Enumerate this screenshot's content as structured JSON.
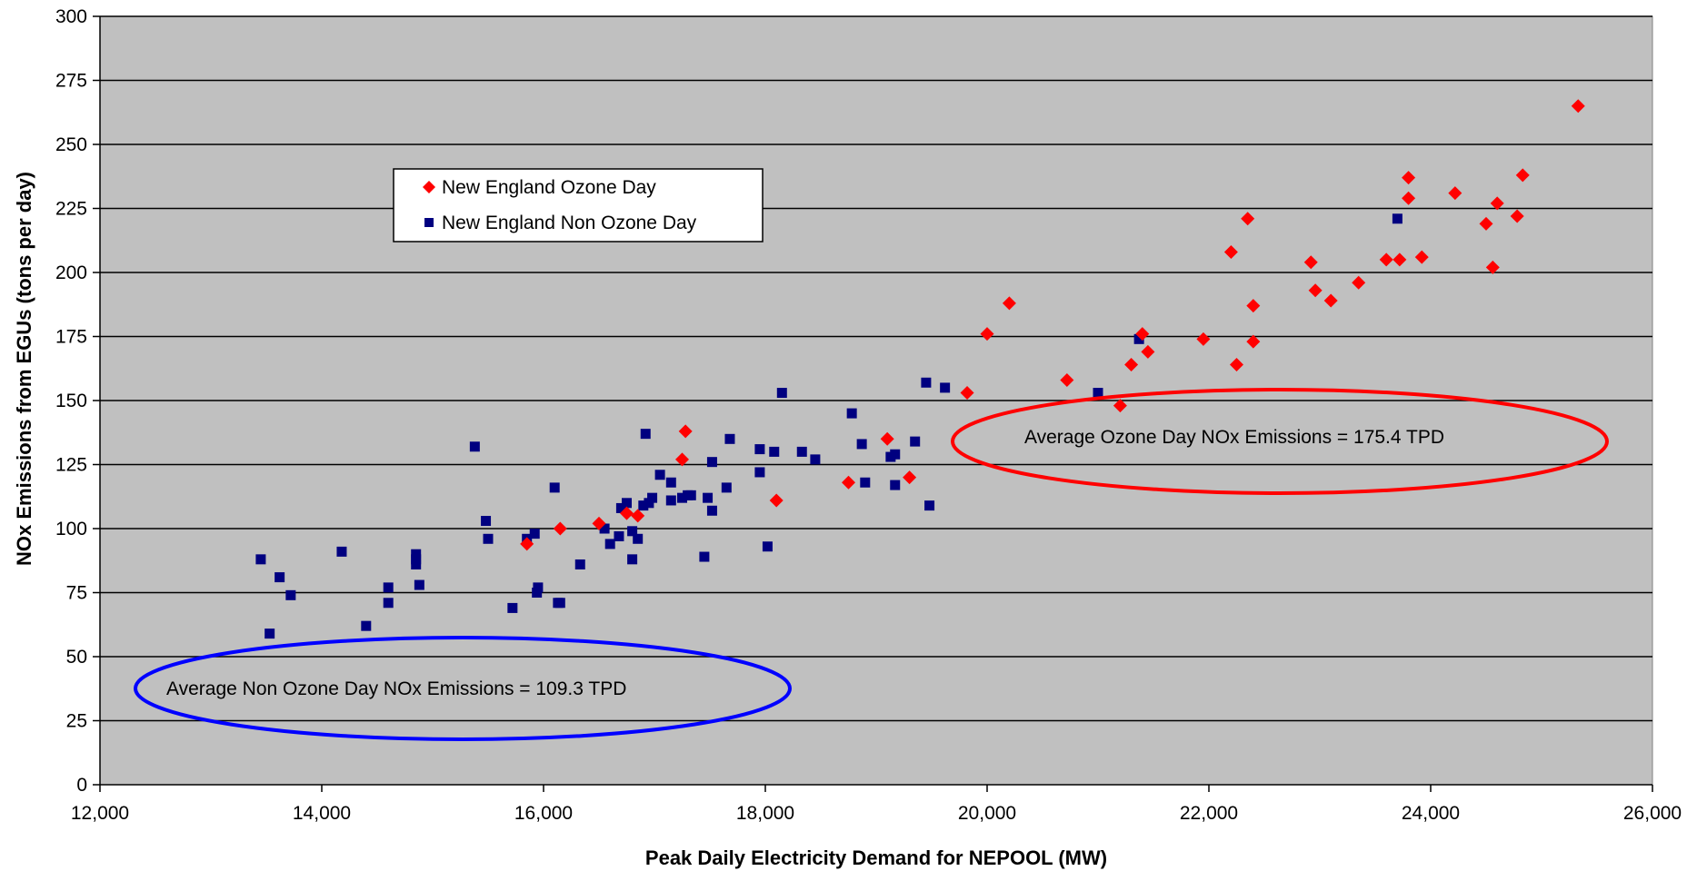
{
  "chart_data": {
    "type": "scatter",
    "title": "",
    "xlabel": "Peak Daily Electricity Demand for NEPOOL (MW)",
    "ylabel": "NOx Emissions from EGUs (tons per day)",
    "xlim": [
      12000,
      26000
    ],
    "ylim": [
      0,
      300
    ],
    "x_ticks": [
      12000,
      14000,
      16000,
      18000,
      20000,
      22000,
      24000,
      26000
    ],
    "x_tick_labels": [
      "12,000",
      "14,000",
      "16,000",
      "18,000",
      "20,000",
      "22,000",
      "24,000",
      "26,000"
    ],
    "y_ticks": [
      0,
      25,
      50,
      75,
      100,
      125,
      150,
      175,
      200,
      225,
      250,
      275,
      300
    ],
    "y_tick_labels": [
      "0",
      "25",
      "50",
      "75",
      "100",
      "125",
      "150",
      "175",
      "200",
      "225",
      "250",
      "275",
      "300"
    ],
    "grid": "horizontal",
    "plot_background": "#c0c0c0",
    "legend": {
      "placement": "upper-left"
    },
    "series": [
      {
        "name": "New England Ozone Day",
        "marker": "diamond",
        "color": "#ff0000",
        "points": [
          [
            15850,
            94
          ],
          [
            16150,
            100
          ],
          [
            16500,
            102
          ],
          [
            16750,
            106
          ],
          [
            16850,
            105
          ],
          [
            17250,
            127
          ],
          [
            17280,
            138
          ],
          [
            18100,
            111
          ],
          [
            18750,
            118
          ],
          [
            19100,
            135
          ],
          [
            19300,
            120
          ],
          [
            19820,
            153
          ],
          [
            20000,
            176
          ],
          [
            20200,
            188
          ],
          [
            20720,
            158
          ],
          [
            21200,
            148
          ],
          [
            21300,
            164
          ],
          [
            21400,
            176
          ],
          [
            21450,
            169
          ],
          [
            21950,
            174
          ],
          [
            22200,
            208
          ],
          [
            22250,
            164
          ],
          [
            22350,
            221
          ],
          [
            22400,
            187
          ],
          [
            22400,
            173
          ],
          [
            22920,
            204
          ],
          [
            22960,
            193
          ],
          [
            23100,
            189
          ],
          [
            23350,
            196
          ],
          [
            23600,
            205
          ],
          [
            23720,
            205
          ],
          [
            23800,
            237
          ],
          [
            23800,
            229
          ],
          [
            23920,
            206
          ],
          [
            24220,
            231
          ],
          [
            24500,
            219
          ],
          [
            24560,
            202
          ],
          [
            24600,
            227
          ],
          [
            24780,
            222
          ],
          [
            24830,
            238
          ],
          [
            25330,
            265
          ]
        ]
      },
      {
        "name": "New England Non Ozone Day",
        "marker": "square",
        "color": "#000080",
        "points": [
          [
            13450,
            88
          ],
          [
            13530,
            59
          ],
          [
            13620,
            81
          ],
          [
            13720,
            74
          ],
          [
            14180,
            91
          ],
          [
            14400,
            62
          ],
          [
            14600,
            71
          ],
          [
            14600,
            77
          ],
          [
            14850,
            86
          ],
          [
            14850,
            88
          ],
          [
            14850,
            90
          ],
          [
            14880,
            78
          ],
          [
            15380,
            132
          ],
          [
            15480,
            103
          ],
          [
            15500,
            96
          ],
          [
            15720,
            69
          ],
          [
            15850,
            96
          ],
          [
            15920,
            98
          ],
          [
            15940,
            75
          ],
          [
            15950,
            77
          ],
          [
            16100,
            116
          ],
          [
            16130,
            71
          ],
          [
            16150,
            71
          ],
          [
            16330,
            86
          ],
          [
            16550,
            100
          ],
          [
            16600,
            94
          ],
          [
            16680,
            97
          ],
          [
            16700,
            108
          ],
          [
            16750,
            110
          ],
          [
            16800,
            99
          ],
          [
            16800,
            88
          ],
          [
            16850,
            96
          ],
          [
            16900,
            109
          ],
          [
            16920,
            137
          ],
          [
            16950,
            110
          ],
          [
            16980,
            112
          ],
          [
            17050,
            121
          ],
          [
            17150,
            118
          ],
          [
            17150,
            111
          ],
          [
            17250,
            112
          ],
          [
            17300,
            113
          ],
          [
            17330,
            113
          ],
          [
            17450,
            89
          ],
          [
            17480,
            112
          ],
          [
            17520,
            107
          ],
          [
            17520,
            126
          ],
          [
            17650,
            116
          ],
          [
            17680,
            135
          ],
          [
            17950,
            131
          ],
          [
            17950,
            122
          ],
          [
            18020,
            93
          ],
          [
            18080,
            130
          ],
          [
            18150,
            153
          ],
          [
            18330,
            130
          ],
          [
            18450,
            127
          ],
          [
            18780,
            145
          ],
          [
            18870,
            133
          ],
          [
            18900,
            118
          ],
          [
            19130,
            128
          ],
          [
            19170,
            117
          ],
          [
            19170,
            129
          ],
          [
            19350,
            134
          ],
          [
            19450,
            157
          ],
          [
            19480,
            109
          ],
          [
            19620,
            155
          ],
          [
            21000,
            153
          ],
          [
            21370,
            174
          ],
          [
            23700,
            221
          ]
        ]
      }
    ],
    "annotations": [
      {
        "text": "Average Ozone Day NOx Emissions = 175.4 TPD",
        "ellipse_color": "#ff0000"
      },
      {
        "text": "Average Non Ozone Day NOx Emissions = 109.3 TPD",
        "ellipse_color": "#0000ff"
      }
    ]
  }
}
